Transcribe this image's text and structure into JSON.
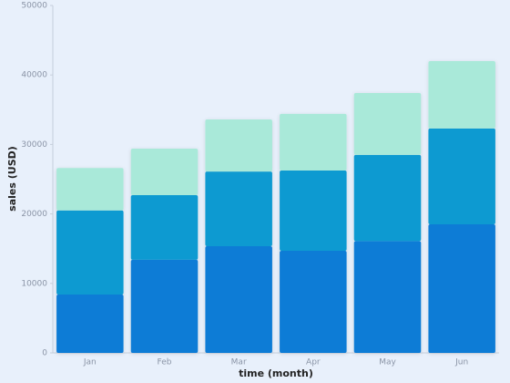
{
  "chart_data": {
    "type": "stacked_bar",
    "x_label": "time (month)",
    "y_label": "sales (USD)",
    "categories": [
      "Jan",
      "Feb",
      "Mar",
      "Apr",
      "May",
      "Jun"
    ],
    "series": [
      {
        "color": "#0a7bd6",
        "values": [
          8400,
          13400,
          15350,
          14700,
          16100,
          18500
        ]
      },
      {
        "color": "#0b9ad1",
        "values": [
          12100,
          9300,
          10750,
          11550,
          12400,
          13800
        ]
      },
      {
        "color": "#a9e9d9",
        "values": [
          6100,
          6700,
          7500,
          8150,
          8900,
          9700
        ]
      }
    ],
    "ylim": [
      0,
      50000
    ],
    "yticks": [
      0,
      10000,
      20000,
      30000,
      40000,
      50000
    ]
  }
}
